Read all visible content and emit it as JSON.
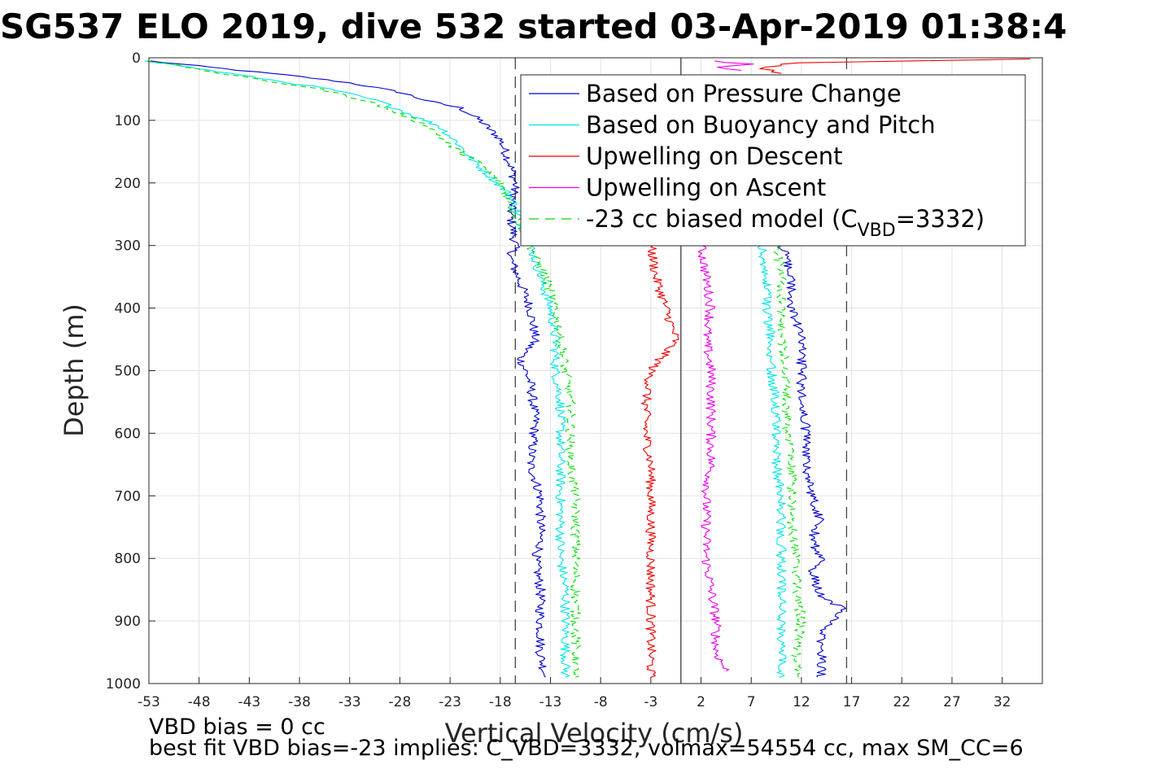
{
  "chart_data": {
    "type": "line",
    "title": "SG537 ELO 2019, dive 532 started 03-Apr-2019 01:38:4",
    "xlabel": "Vertical Velocity (cm/s)",
    "ylabel": "Depth (m)",
    "xlim": [
      -53,
      36
    ],
    "ylim": [
      0,
      1000
    ],
    "y_reversed": true,
    "grid": true,
    "x_ticks": [
      -53,
      -48,
      -43,
      -38,
      -33,
      -28,
      -23,
      -18,
      -13,
      -8,
      -3,
      2,
      7,
      12,
      17,
      22,
      27,
      32
    ],
    "y_ticks": [
      0,
      100,
      200,
      300,
      400,
      500,
      600,
      700,
      800,
      900,
      1000
    ],
    "legend_position": "top-right",
    "reference_lines": {
      "solid_vertical_x": 0,
      "dashed_vertical_x": [
        -16.5,
        16.5
      ]
    },
    "series": [
      {
        "name": "Based on Pressure Change",
        "color": "#0000cc",
        "style": "solid",
        "descent": [
          [
            -53,
            5
          ],
          [
            -38,
            30
          ],
          [
            -33,
            40
          ],
          [
            -28,
            55
          ],
          [
            -25,
            70
          ],
          [
            -22,
            80
          ],
          [
            -20,
            100
          ],
          [
            -18,
            130
          ],
          [
            -17,
            170
          ],
          [
            -16.5,
            200
          ],
          [
            -17,
            250
          ],
          [
            -16.5,
            300
          ],
          [
            -17,
            320
          ],
          [
            -16,
            360
          ],
          [
            -15,
            400
          ],
          [
            -14.5,
            450
          ],
          [
            -16,
            480
          ],
          [
            -15,
            520
          ],
          [
            -14.5,
            580
          ],
          [
            -15,
            650
          ],
          [
            -14,
            700
          ],
          [
            -14,
            780
          ],
          [
            -14.5,
            800
          ],
          [
            -14,
            850
          ],
          [
            -14,
            900
          ],
          [
            -14,
            950
          ],
          [
            -13.5,
            990
          ]
        ],
        "ascent": [
          [
            14,
            990
          ],
          [
            14,
            960
          ],
          [
            14,
            920
          ],
          [
            15,
            900
          ],
          [
            16,
            880
          ],
          [
            14,
            860
          ],
          [
            13,
            820
          ],
          [
            14,
            800
          ],
          [
            13,
            770
          ],
          [
            14,
            740
          ],
          [
            13,
            700
          ],
          [
            12.5,
            650
          ],
          [
            12.5,
            600
          ],
          [
            12,
            550
          ],
          [
            12,
            500
          ],
          [
            12,
            450
          ],
          [
            11,
            400
          ],
          [
            11,
            360
          ],
          [
            10.5,
            320
          ],
          [
            10,
            300
          ]
        ]
      },
      {
        "name": "Based on Buoyancy and Pitch",
        "color": "#00e5e5",
        "style": "solid",
        "descent": [
          [
            -53,
            5
          ],
          [
            -43,
            30
          ],
          [
            -35,
            50
          ],
          [
            -30,
            70
          ],
          [
            -27,
            90
          ],
          [
            -24,
            110
          ],
          [
            -22,
            140
          ],
          [
            -21,
            160
          ],
          [
            -19,
            190
          ],
          [
            -17,
            220
          ],
          [
            -16,
            260
          ],
          [
            -15,
            300
          ],
          [
            -14,
            350
          ],
          [
            -13,
            400
          ],
          [
            -12.5,
            450
          ],
          [
            -12.5,
            500
          ],
          [
            -12,
            550
          ],
          [
            -12,
            600
          ],
          [
            -12,
            650
          ],
          [
            -12,
            700
          ],
          [
            -12,
            750
          ],
          [
            -12,
            800
          ],
          [
            -11.5,
            850
          ],
          [
            -11.5,
            900
          ],
          [
            -11.5,
            950
          ],
          [
            -11.5,
            990
          ]
        ],
        "ascent": [
          [
            10,
            990
          ],
          [
            10,
            960
          ],
          [
            10,
            920
          ],
          [
            10,
            880
          ],
          [
            10,
            850
          ],
          [
            10,
            800
          ],
          [
            10,
            750
          ],
          [
            10,
            700
          ],
          [
            9.5,
            650
          ],
          [
            9.5,
            600
          ],
          [
            9.5,
            550
          ],
          [
            9,
            500
          ],
          [
            9,
            450
          ],
          [
            8.5,
            400
          ],
          [
            8.5,
            350
          ],
          [
            8,
            300
          ]
        ]
      },
      {
        "name": "Upwelling on Descent",
        "color": "#ee0000",
        "style": "solid",
        "descent": [
          [
            -3,
            300
          ],
          [
            -2.5,
            350
          ],
          [
            -1.5,
            400
          ],
          [
            -0.5,
            450
          ],
          [
            -3,
            500
          ],
          [
            -3.5,
            550
          ],
          [
            -3.5,
            600
          ],
          [
            -3,
            650
          ],
          [
            -3,
            700
          ],
          [
            -3,
            750
          ],
          [
            -3,
            800
          ],
          [
            -3,
            850
          ],
          [
            -3,
            900
          ],
          [
            -3,
            950
          ],
          [
            -3,
            990
          ]
        ],
        "top": [
          [
            35,
            2
          ],
          [
            12,
            8
          ],
          [
            8,
            15
          ],
          [
            10,
            25
          ]
        ]
      },
      {
        "name": "Upwelling on Ascent",
        "color": "#ee00ee",
        "style": "solid",
        "ascent": [
          [
            2,
            300
          ],
          [
            2.5,
            350
          ],
          [
            3,
            400
          ],
          [
            2.5,
            450
          ],
          [
            3,
            500
          ],
          [
            3,
            550
          ],
          [
            3,
            600
          ],
          [
            3,
            650
          ],
          [
            2.5,
            700
          ],
          [
            2.5,
            750
          ],
          [
            2.5,
            800
          ],
          [
            3,
            850
          ],
          [
            3.5,
            900
          ],
          [
            3.5,
            950
          ],
          [
            4.5,
            980
          ]
        ],
        "top": [
          [
            3,
            5
          ],
          [
            7,
            10
          ],
          [
            4,
            15
          ],
          [
            6,
            20
          ]
        ]
      },
      {
        "name": "-23 cc biased model (C_VBD=3332)",
        "color": "#00dd00",
        "style": "dashed",
        "descent": [
          [
            -53,
            5
          ],
          [
            -44,
            30
          ],
          [
            -36,
            50
          ],
          [
            -31,
            70
          ],
          [
            -28,
            90
          ],
          [
            -25,
            110
          ],
          [
            -23,
            140
          ],
          [
            -20,
            170
          ],
          [
            -18,
            200
          ],
          [
            -16.5,
            250
          ],
          [
            -15,
            300
          ],
          [
            -13.5,
            350
          ],
          [
            -12.5,
            400
          ],
          [
            -12,
            450
          ],
          [
            -11.5,
            500
          ],
          [
            -11,
            550
          ],
          [
            -11,
            600
          ],
          [
            -11,
            650
          ],
          [
            -10.5,
            700
          ],
          [
            -10.5,
            750
          ],
          [
            -10.5,
            800
          ],
          [
            -10.5,
            850
          ],
          [
            -10.5,
            900
          ],
          [
            -10.5,
            950
          ],
          [
            -10.5,
            990
          ]
        ],
        "ascent": [
          [
            11.5,
            990
          ],
          [
            11.5,
            950
          ],
          [
            12,
            900
          ],
          [
            11.5,
            850
          ],
          [
            11.5,
            800
          ],
          [
            11,
            750
          ],
          [
            11,
            700
          ],
          [
            11,
            650
          ],
          [
            10.5,
            600
          ],
          [
            10.5,
            550
          ],
          [
            10.5,
            500
          ],
          [
            10,
            450
          ],
          [
            10,
            400
          ],
          [
            10,
            350
          ],
          [
            9.5,
            300
          ]
        ]
      }
    ]
  },
  "legend": [
    {
      "label": "Based on Pressure Change",
      "color": "#0000cc",
      "dashed": false
    },
    {
      "label": "Based on Buoyancy and Pitch",
      "color": "#00e5e5",
      "dashed": false
    },
    {
      "label": "Upwelling on Descent",
      "color": "#ee0000",
      "dashed": false
    },
    {
      "label": "Upwelling on Ascent",
      "color": "#ee00ee",
      "dashed": false
    },
    {
      "label_prefix": "-23 cc biased model (C",
      "label_sub": "VBD",
      "label_suffix": "=3332)",
      "color": "#00dd00",
      "dashed": true
    }
  ],
  "notes": {
    "line1": "VBD bias = 0 cc",
    "line2": "best fit VBD bias=-23 implies: C_VBD=3332, volmax=54554 cc, max SM_CC=6"
  }
}
